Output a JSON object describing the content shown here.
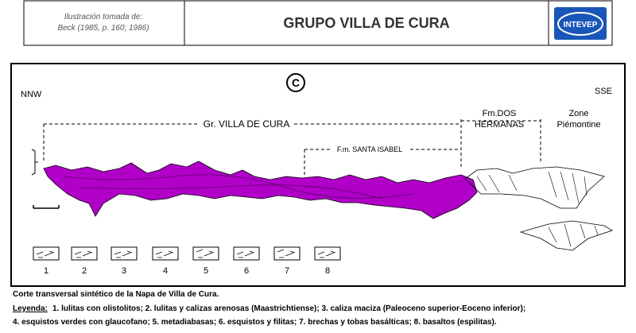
{
  "header": {
    "credit": [
      "Ilustración tomada de:",
      "Beck (1985, p. 160; 1986)"
    ],
    "title": "GRUPO VILLA DE CURA",
    "logo": "INTEVEP"
  },
  "section": {
    "panel": "C",
    "left": "NNW",
    "right": "SSE",
    "group": "Gr. VILLA DE CURA",
    "santa_isabel": "F.m. SANTA ISABEL",
    "dos_hermanas": [
      "Fm.DOS",
      "HERMANAS"
    ],
    "piemontine": [
      "Zone",
      "Piémontine"
    ]
  },
  "legend_keys": [
    "1",
    "2",
    "3",
    "4",
    "5",
    "6",
    "7",
    "8"
  ],
  "caption": {
    "title": "Corte transversal sintético de la Napa de Villa de Cura.",
    "legend_label": "Leyenda:",
    "lines": [
      "1. lulitas con olistolitos; 2. lulitas y calizas arenosas (Maastrichtiense); 3. caliza maciza (Paleoceno superior-Eoceno inferior);",
      "4. esquistos verdes con glaucofano; 5. metadiabasas; 6. esquistos y filitas; 7. brechas y tobas basálticas; 8. basaltos (espilitas)."
    ]
  }
}
